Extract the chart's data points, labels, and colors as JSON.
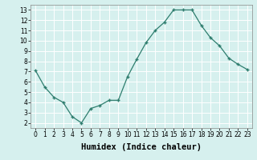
{
  "x": [
    0,
    1,
    2,
    3,
    4,
    5,
    6,
    7,
    8,
    9,
    10,
    11,
    12,
    13,
    14,
    15,
    16,
    17,
    18,
    19,
    20,
    21,
    22,
    23
  ],
  "y": [
    7.1,
    5.5,
    4.5,
    4.0,
    2.6,
    2.0,
    3.4,
    3.7,
    4.2,
    4.2,
    6.5,
    8.2,
    9.8,
    11.0,
    11.8,
    13.0,
    13.0,
    13.0,
    11.5,
    10.3,
    9.5,
    8.3,
    7.7,
    7.2
  ],
  "xlabel": "Humidex (Indice chaleur)",
  "ylim": [
    1.5,
    13.5
  ],
  "xlim": [
    -0.5,
    23.5
  ],
  "yticks": [
    2,
    3,
    4,
    5,
    6,
    7,
    8,
    9,
    10,
    11,
    12,
    13
  ],
  "xticks": [
    0,
    1,
    2,
    3,
    4,
    5,
    6,
    7,
    8,
    9,
    10,
    11,
    12,
    13,
    14,
    15,
    16,
    17,
    18,
    19,
    20,
    21,
    22,
    23
  ],
  "line_color": "#2e7d6e",
  "marker": "+",
  "bg_color": "#d6f0ee",
  "grid_color": "#ffffff",
  "spine_color": "#888888",
  "tick_label_fontsize": 5.5,
  "xlabel_fontsize": 7.5
}
